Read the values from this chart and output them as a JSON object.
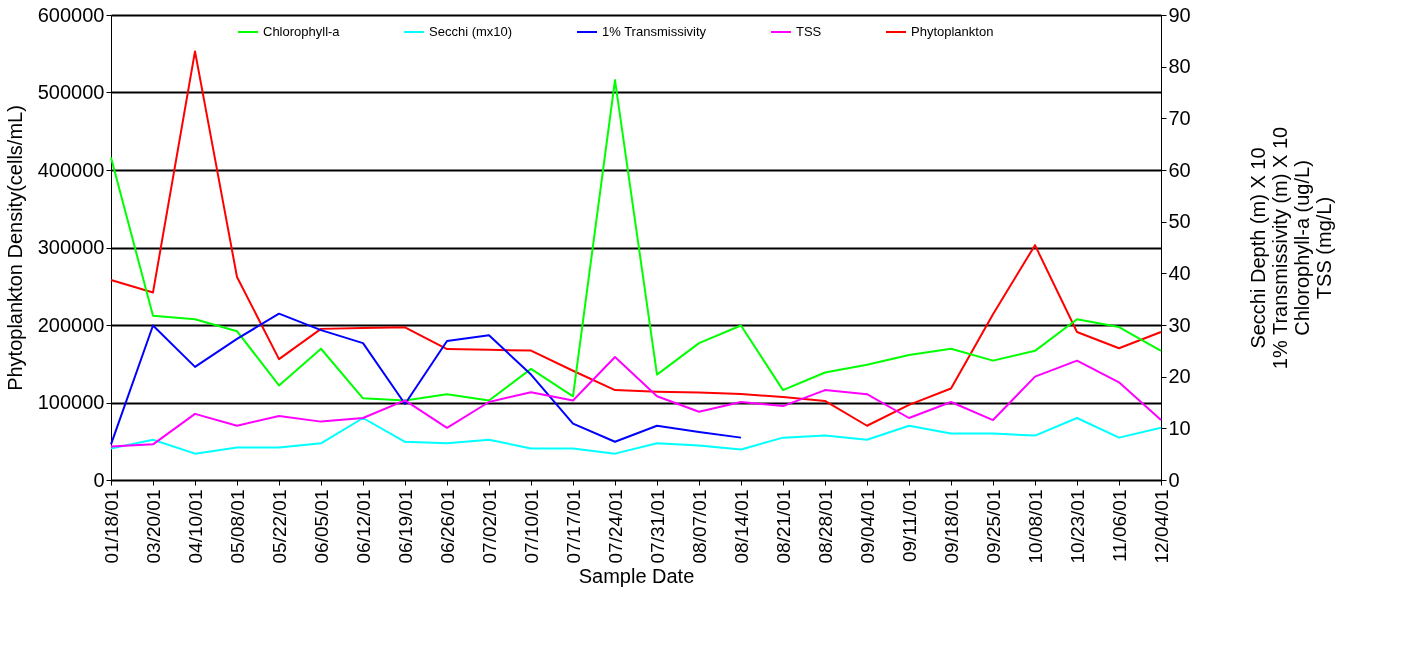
{
  "chart_data": {
    "type": "line",
    "xlabel": "Sample Date",
    "ylabel": "Phytoplankton Density(cells/mL)",
    "y2label": "Secchi Depth (m) X 10\n1% Transmissivity (m) X 10\nChlorophyll-a (ug/L)\nTSS (mg/L)",
    "categories": [
      "01/18/01",
      "03/20/01",
      "04/10/01",
      "05/08/01",
      "05/22/01",
      "06/05/01",
      "06/12/01",
      "06/19/01",
      "06/26/01",
      "07/02/01",
      "07/10/01",
      "07/17/01",
      "07/24/01",
      "07/31/01",
      "08/07/01",
      "08/14/01",
      "08/21/01",
      "08/28/01",
      "09/04/01",
      "09/11/01",
      "09/18/01",
      "09/25/01",
      "10/08/01",
      "10/23/01",
      "11/06/01",
      "12/04/01"
    ],
    "series": [
      {
        "name": "Chlorophyll-a",
        "color": "#00ff00",
        "axis": "y2",
        "values": [
          62.4,
          31.8,
          31.1,
          28.8,
          18.3,
          25.4,
          15.8,
          15.4,
          16.6,
          15.4,
          21.5,
          16.2,
          77.4,
          20.4,
          26.5,
          29.9,
          17.4,
          20.8,
          22.3,
          24.2,
          25.4,
          23.1,
          25.0,
          31.1,
          29.6,
          25.0
        ]
      },
      {
        "name": "Secchi (mx10)",
        "color": "#00ffff",
        "axis": "y2",
        "values": [
          6.1,
          7.8,
          5.1,
          6.3,
          6.3,
          7.1,
          12.0,
          7.4,
          7.1,
          7.8,
          6.1,
          6.1,
          5.1,
          7.1,
          6.7,
          5.9,
          8.2,
          8.6,
          7.8,
          10.5,
          9.0,
          9.0,
          8.6,
          12.0,
          8.2,
          10.1
        ]
      },
      {
        "name": "1% Transmissivity",
        "color": "#0000ff",
        "axis": "y2",
        "values": [
          6.9,
          29.9,
          21.9,
          27.3,
          32.2,
          29.0,
          26.5,
          14.7,
          26.9,
          28.0,
          20.4,
          10.9,
          7.4,
          10.5,
          9.3,
          8.2,
          null,
          null,
          null,
          null,
          null,
          null,
          null,
          null,
          null,
          null
        ]
      },
      {
        "name": "TSS",
        "color": "#ff00ff",
        "axis": "y2",
        "values": [
          6.5,
          6.9,
          12.8,
          10.5,
          12.4,
          11.3,
          12.0,
          15.4,
          10.1,
          15.1,
          17.0,
          15.4,
          23.8,
          16.2,
          13.2,
          15.1,
          14.3,
          17.4,
          16.6,
          12.0,
          15.1,
          11.6,
          20.0,
          23.1,
          18.9,
          11.6
        ]
      },
      {
        "name": "Phytoplankton",
        "color": "#ff0000",
        "axis": "y",
        "values": [
          258000,
          242000,
          553000,
          262000,
          156000,
          195000,
          196000,
          197000,
          169000,
          168000,
          167000,
          141000,
          116000,
          114000,
          113000,
          111000,
          107000,
          102000,
          70000,
          97000,
          118000,
          214000,
          303000,
          191000,
          170000,
          191000
        ]
      }
    ],
    "ylim": [
      0,
      600000
    ],
    "yticks": [
      0,
      100000,
      200000,
      300000,
      400000,
      500000,
      600000
    ],
    "y2lim": [
      0,
      90
    ],
    "y2ticks": [
      0,
      10,
      20,
      30,
      40,
      50,
      60,
      70,
      80,
      90
    ],
    "grid": "y",
    "legend": "top",
    "line_style": "solid",
    "marker": "none"
  }
}
